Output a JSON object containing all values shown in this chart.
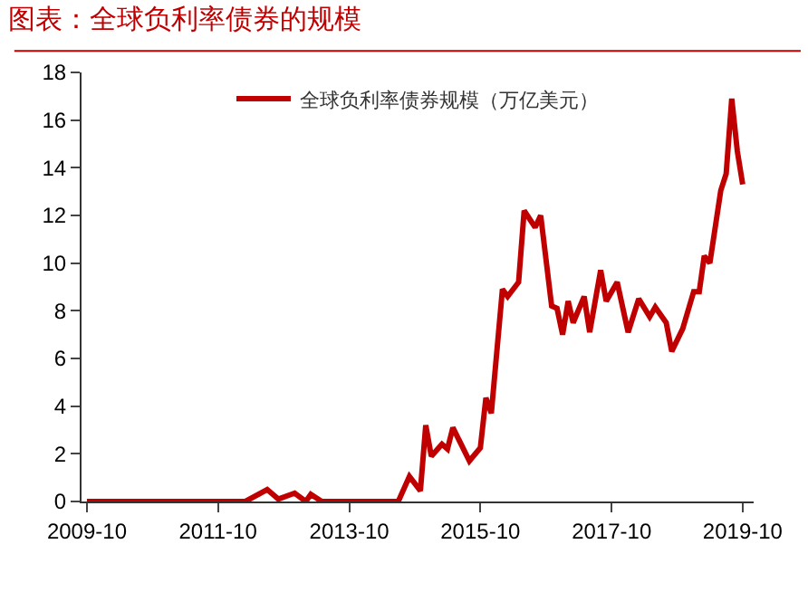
{
  "chart_data": {
    "type": "line",
    "title": "图表：全球负利率债券的规模",
    "legend": "top",
    "grid": false,
    "marker": "none",
    "line_style": "solid",
    "x": [
      "2009-10",
      "2010-06",
      "2011-03",
      "2011-12",
      "2012-03",
      "2012-07",
      "2012-09",
      "2012-12",
      "2013-02",
      "2013-03",
      "2013-05",
      "2014-01",
      "2014-07",
      "2014-09",
      "2014-11",
      "2014-12",
      "2015-01",
      "2015-03",
      "2015-04",
      "2015-05",
      "2015-08",
      "2015-10",
      "2015-11",
      "2015-12",
      "2016-02",
      "2016-03",
      "2016-05",
      "2016-06",
      "2016-08",
      "2016-09",
      "2016-11",
      "2016-12",
      "2017-01",
      "2017-02",
      "2017-03",
      "2017-05",
      "2017-06",
      "2017-08",
      "2017-09",
      "2017-11",
      "2018-01",
      "2018-03",
      "2018-05",
      "2018-06",
      "2018-08",
      "2018-09",
      "2018-11",
      "2019-01",
      "2019-02",
      "2019-03",
      "2019-04",
      "2019-06",
      "2019-07",
      "2019-08",
      "2019-09",
      "2019-10"
    ],
    "series": [
      {
        "name": "全球负利率债券规模（万亿美元）",
        "color": "#c00000",
        "values": [
          0,
          0,
          0,
          0,
          0,
          0.5,
          0.1,
          0.35,
          0,
          0.3,
          0,
          0,
          0,
          1.05,
          0.45,
          3.2,
          1.9,
          2.4,
          2.2,
          3.1,
          1.7,
          2.25,
          4.35,
          3.7,
          8.9,
          8.6,
          9.2,
          12.2,
          11.5,
          12.0,
          8.2,
          8.1,
          7.0,
          8.4,
          7.5,
          8.6,
          7.1,
          9.7,
          8.4,
          9.2,
          7.1,
          8.5,
          7.75,
          8.15,
          7.5,
          6.3,
          7.25,
          8.8,
          8.8,
          10.3,
          10.0,
          13.05,
          13.75,
          16.9,
          14.7,
          13.3
        ]
      }
    ],
    "xlim": [
      "2009-09",
      "2019-12"
    ],
    "xticks": [
      {
        "value": "2009-10",
        "label": "2009-10"
      },
      {
        "value": "2011-10",
        "label": "2011-10"
      },
      {
        "value": "2013-10",
        "label": "2013-10"
      },
      {
        "value": "2015-10",
        "label": "2015-10"
      },
      {
        "value": "2017-10",
        "label": "2017-10"
      },
      {
        "value": "2019-10",
        "label": "2019-10"
      }
    ],
    "ylim": [
      0,
      18
    ],
    "yticks": [
      0,
      2,
      4,
      6,
      8,
      10,
      12,
      14,
      16,
      18
    ]
  }
}
